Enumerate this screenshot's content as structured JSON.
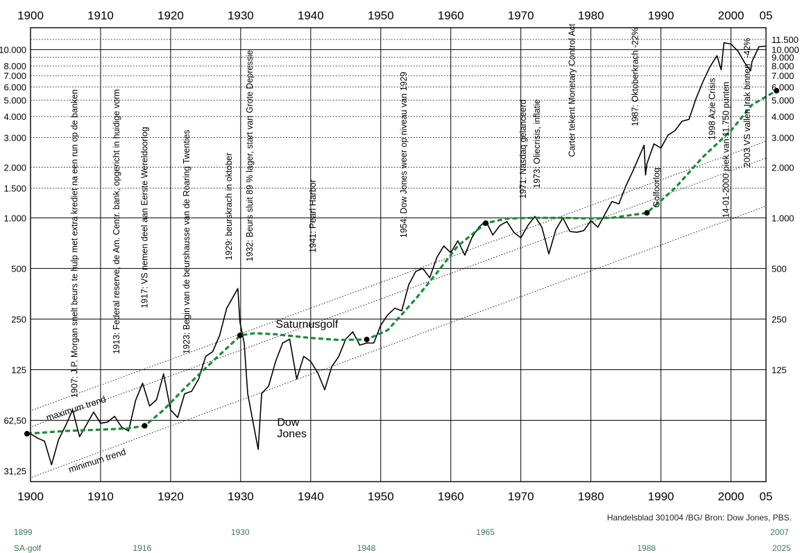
{
  "chart_data": {
    "type": "line",
    "scale": "log",
    "xlim": [
      1900,
      2005
    ],
    "ylim": [
      27,
      13500
    ],
    "x_ticks": [
      {
        "year": 1900,
        "label": "1900"
      },
      {
        "year": 1910,
        "label": "1910"
      },
      {
        "year": 1920,
        "label": "1920"
      },
      {
        "year": 1930,
        "label": "1930"
      },
      {
        "year": 1940,
        "label": "1940"
      },
      {
        "year": 1950,
        "label": "1950"
      },
      {
        "year": 1960,
        "label": "1960"
      },
      {
        "year": 1970,
        "label": "1970"
      },
      {
        "year": 1980,
        "label": "1980"
      },
      {
        "year": 1990,
        "label": "1990"
      },
      {
        "year": 2000,
        "label": "2000"
      },
      {
        "year": 2005,
        "label": "05"
      }
    ],
    "y_ticks_left": [
      {
        "value": 31.25,
        "label": "31,25"
      },
      {
        "value": 62.5,
        "label": "62,50"
      },
      {
        "value": 125,
        "label": "125"
      },
      {
        "value": 250,
        "label": "250"
      },
      {
        "value": 500,
        "label": "500"
      },
      {
        "value": 1000,
        "label": "1.000"
      },
      {
        "value": 1500,
        "label": "1.500"
      },
      {
        "value": 2000,
        "label": "2.000"
      },
      {
        "value": 3000,
        "label": "3.000"
      },
      {
        "value": 4000,
        "label": "4.000"
      },
      {
        "value": 5000,
        "label": "5.000"
      },
      {
        "value": 6000,
        "label": "6.000"
      },
      {
        "value": 7000,
        "label": "7.000"
      },
      {
        "value": 8000,
        "label": "8.000"
      },
      {
        "value": 10000,
        "label": "10.000"
      }
    ],
    "y_ticks_right": [
      {
        "value": 125,
        "label": "125"
      },
      {
        "value": 250,
        "label": "250"
      },
      {
        "value": 500,
        "label": "500"
      },
      {
        "value": 1000,
        "label": "1.000"
      },
      {
        "value": 2000,
        "label": "2.000"
      },
      {
        "value": 3000,
        "label": "3.000"
      },
      {
        "value": 4000,
        "label": "4.000"
      },
      {
        "value": 5000,
        "label": "5.000"
      },
      {
        "value": 6000,
        "label": "6.000"
      },
      {
        "value": 7000,
        "label": "7.000"
      },
      {
        "value": 8000,
        "label": "8.000"
      },
      {
        "value": 9000,
        "label": "9.000"
      },
      {
        "value": 10000,
        "label": "10.000"
      },
      {
        "value": 11500,
        "label": "11.500"
      }
    ],
    "dotted_gridlines": [
      1500,
      2000,
      3000,
      4000,
      5000,
      6000,
      7000,
      8000,
      9000,
      11500
    ],
    "solid_gridlines": [
      62.5,
      125,
      250,
      500,
      1000,
      10000
    ],
    "series": [
      {
        "name": "Dow Jones",
        "color": "#000000",
        "points": [
          [
            1900,
            52
          ],
          [
            1901,
            49
          ],
          [
            1902,
            47
          ],
          [
            1903,
            34
          ],
          [
            1904,
            48
          ],
          [
            1905,
            58
          ],
          [
            1906,
            72
          ],
          [
            1907,
            50
          ],
          [
            1908,
            59
          ],
          [
            1909,
            70
          ],
          [
            1910,
            60
          ],
          [
            1911,
            61
          ],
          [
            1912,
            66
          ],
          [
            1913,
            57
          ],
          [
            1914,
            54
          ],
          [
            1915,
            82
          ],
          [
            1916,
            104
          ],
          [
            1917,
            76
          ],
          [
            1918,
            83
          ],
          [
            1919,
            118
          ],
          [
            1920,
            72
          ],
          [
            1921,
            65
          ],
          [
            1922,
            90
          ],
          [
            1923,
            93
          ],
          [
            1924,
            110
          ],
          [
            1925,
            150
          ],
          [
            1926,
            160
          ],
          [
            1927,
            200
          ],
          [
            1928,
            290
          ],
          [
            1929.6,
            380
          ],
          [
            1929.9,
            240
          ],
          [
            1930.5,
            180
          ],
          [
            1931,
            90
          ],
          [
            1932.5,
            42
          ],
          [
            1933,
            90
          ],
          [
            1934,
            100
          ],
          [
            1935,
            140
          ],
          [
            1936,
            180
          ],
          [
            1937,
            190
          ],
          [
            1938,
            110
          ],
          [
            1939,
            150
          ],
          [
            1940,
            140
          ],
          [
            1941,
            120
          ],
          [
            1942,
            95
          ],
          [
            1943,
            130
          ],
          [
            1944,
            150
          ],
          [
            1945,
            190
          ],
          [
            1946,
            210
          ],
          [
            1947,
            175
          ],
          [
            1948,
            180
          ],
          [
            1949,
            180
          ],
          [
            1950,
            230
          ],
          [
            1951,
            265
          ],
          [
            1952,
            290
          ],
          [
            1953,
            280
          ],
          [
            1954,
            400
          ],
          [
            1955,
            480
          ],
          [
            1956,
            500
          ],
          [
            1957,
            440
          ],
          [
            1958,
            580
          ],
          [
            1959,
            680
          ],
          [
            1960,
            620
          ],
          [
            1961,
            730
          ],
          [
            1962,
            600
          ],
          [
            1963,
            760
          ],
          [
            1964,
            880
          ],
          [
            1965,
            960
          ],
          [
            1966,
            790
          ],
          [
            1967,
            900
          ],
          [
            1968,
            950
          ],
          [
            1969,
            820
          ],
          [
            1970,
            760
          ],
          [
            1971,
            900
          ],
          [
            1972,
            1020
          ],
          [
            1973,
            880
          ],
          [
            1974,
            610
          ],
          [
            1975,
            850
          ],
          [
            1976,
            1000
          ],
          [
            1977,
            830
          ],
          [
            1978,
            820
          ],
          [
            1979,
            840
          ],
          [
            1980,
            960
          ],
          [
            1981,
            880
          ],
          [
            1982,
            1050
          ],
          [
            1983,
            1250
          ],
          [
            1984,
            1210
          ],
          [
            1985,
            1550
          ],
          [
            1986,
            1900
          ],
          [
            1987.6,
            2700
          ],
          [
            1987.8,
            1800
          ],
          [
            1988,
            2100
          ],
          [
            1989,
            2750
          ],
          [
            1990,
            2600
          ],
          [
            1991,
            3100
          ],
          [
            1992,
            3300
          ],
          [
            1993,
            3750
          ],
          [
            1994,
            3850
          ],
          [
            1995,
            5100
          ],
          [
            1996,
            6450
          ],
          [
            1997,
            7900
          ],
          [
            1998,
            9200
          ],
          [
            1998.6,
            7600
          ],
          [
            1999,
            11000
          ],
          [
            2000,
            10800
          ],
          [
            2001,
            9800
          ],
          [
            2002,
            8300
          ],
          [
            2002.8,
            7500
          ],
          [
            2003,
            8500
          ],
          [
            2004,
            10400
          ],
          [
            2005,
            10500
          ]
        ]
      },
      {
        "name": "Saturnusgolf",
        "color": "#1a8a3a",
        "points": [
          [
            1899.5,
            52
          ],
          [
            1905,
            54
          ],
          [
            1910,
            55
          ],
          [
            1914,
            56
          ],
          [
            1916.3,
            58
          ],
          [
            1919,
            72
          ],
          [
            1922,
            97
          ],
          [
            1926,
            140
          ],
          [
            1930,
            200
          ],
          [
            1932,
            206
          ],
          [
            1935,
            203
          ],
          [
            1940,
            193
          ],
          [
            1944,
            188
          ],
          [
            1948,
            189
          ],
          [
            1951,
            215
          ],
          [
            1955,
            330
          ],
          [
            1958,
            470
          ],
          [
            1961,
            680
          ],
          [
            1965,
            930
          ],
          [
            1968,
            990
          ],
          [
            1972,
            1000
          ],
          [
            1976,
            1000
          ],
          [
            1980,
            990
          ],
          [
            1983,
            1000
          ],
          [
            1988,
            1070
          ],
          [
            1992,
            1500
          ],
          [
            1996,
            2300
          ],
          [
            2000,
            3300
          ],
          [
            2003,
            4700
          ],
          [
            2006.5,
            5700
          ]
        ]
      }
    ],
    "wave_points": [
      {
        "x": 1899.5,
        "y": 52
      },
      {
        "x": 1916.3,
        "y": 58
      },
      {
        "x": 1929.9,
        "y": 200
      },
      {
        "x": 1948,
        "y": 189
      },
      {
        "x": 1965,
        "y": 930
      },
      {
        "x": 1988,
        "y": 1070
      },
      {
        "x": 2006.5,
        "y": 5700
      }
    ],
    "trend_lines": [
      {
        "name": "maximum trend",
        "from": [
          1899.5,
          70
        ],
        "to": [
          2010,
          3400
        ]
      },
      {
        "name": "minimum trend",
        "from": [
          1899.5,
          28
        ],
        "to": [
          2010,
          1400
        ]
      },
      {
        "name": "",
        "from": [
          1899.5,
          56
        ],
        "to": [
          2010,
          2700
        ]
      }
    ],
    "labels": {
      "series_dow": [
        "Dow",
        "Jones"
      ],
      "saturnusgolf": "Saturnusgolf",
      "maximum_trend": "maximum trend",
      "minimum_trend": "minimum trend",
      "golfoorlog": "Golfoorlog"
    },
    "event_lines": [
      1910,
      1920,
      1930,
      1940,
      1950,
      1960,
      1970,
      1980,
      1990,
      2000,
      2005
    ],
    "annotations": [
      {
        "year": 1907,
        "text": "1907: J.P. Morgan snelt beurs te hulp met extra krediet na een run op de banken",
        "anchor_value": 85
      },
      {
        "year": 1913,
        "text": "1913: Federal reserve, de Am. Centr. bank, opgericht in huidige vorm",
        "anchor_value": 155
      },
      {
        "year": 1917,
        "text": "1917: VS nemen deel aan Eerste Wereldoorlog",
        "anchor_value": 290
      },
      {
        "year": 1923,
        "text": "1923: Begin van de beurshausse van de Roaring Twenties",
        "anchor_value": 155
      },
      {
        "year": 1929,
        "text": "1929: beurskrach in oktober",
        "anchor_value": 560
      },
      {
        "year": 1932,
        "text": "1932: Beurs sluit 89 % lager, start van Grote Depressie",
        "anchor_value": 550
      },
      {
        "year": 1941,
        "text": "1941: Pearl Harbor",
        "anchor_value": 620
      },
      {
        "year": 1954,
        "text": "1954: Dow Jones weer op  niveau van 1929",
        "anchor_value": 760
      },
      {
        "year": 1971,
        "text": "1971: Nasdaq gelanceerd",
        "anchor_value": 1300
      },
      {
        "year": 1973,
        "text": "1973: Oliecrisis, inflatie",
        "anchor_value": 1500
      },
      {
        "year": 1978,
        "text": "Carter tekent Monetary Control Act",
        "anchor_value": 2300
      },
      {
        "year": 1987,
        "text": "1987: Oktoberkrach -22%",
        "anchor_value": 3500
      },
      {
        "year": 1998,
        "text": "1998 Azie Crisis",
        "anchor_value": 2900
      },
      {
        "year": 2000,
        "text": "14-01-2000 piek van 11.750 punten",
        "anchor_value": 1000
      },
      {
        "year": 2003,
        "text": "2003 VS  vallen Irak binnen",
        "anchor_value": 2000
      },
      {
        "year": 2003,
        "text": "-42%",
        "anchor_value": 8900
      }
    ]
  },
  "footer": {
    "credit": "Handelsblad 301004 /BG/ Bron: Dow Jones, PBS.",
    "cycle_labels": [
      {
        "text": "1899",
        "row": 1,
        "year": 1899
      },
      {
        "text": "1930",
        "row": 1,
        "year": 1930
      },
      {
        "text": "1965",
        "row": 1,
        "year": 1965
      },
      {
        "text": "2007",
        "row": 1,
        "year": 2007
      },
      {
        "text": "SA-golf",
        "row": 2,
        "year": 1899
      },
      {
        "text": "1916",
        "row": 2,
        "year": 1916
      },
      {
        "text": "1948",
        "row": 2,
        "year": 1948
      },
      {
        "text": "1988",
        "row": 2,
        "year": 1988
      },
      {
        "text": "2025",
        "row": 2,
        "year": 2025
      }
    ]
  },
  "colors": {
    "axis": "#000000",
    "grid_dotted": "#000000",
    "wave": "#1a8a3a",
    "footer_cycle": "#3a7a5a"
  }
}
